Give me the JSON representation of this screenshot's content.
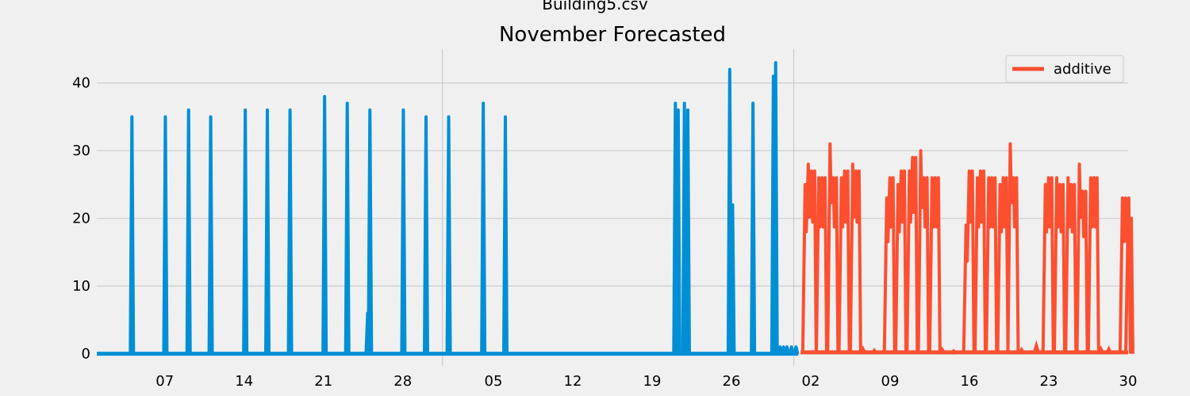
{
  "chart_data": {
    "type": "line",
    "suptitle": "Building5.csv",
    "title": "November Forecasted",
    "xlabel": "",
    "ylabel": "",
    "ylim": [
      -1.8,
      45
    ],
    "yticks": [
      0,
      10,
      20,
      30,
      40
    ],
    "x_tick_labels": [
      "07",
      "14",
      "21",
      "28",
      "05",
      "12",
      "19",
      "26",
      "02",
      "09",
      "16",
      "23",
      "30"
    ],
    "x_tick_days": [
      6,
      13,
      20,
      27,
      35,
      42,
      49,
      56,
      63,
      70,
      77,
      84,
      91
    ],
    "xlim_days": [
      0,
      91
    ],
    "grid": true,
    "legend": {
      "position": "top-right",
      "entries": [
        "additive"
      ]
    },
    "series": [
      {
        "color": "#008fd5",
        "baseline": 0,
        "x_range_days": [
          0,
          61.9
        ],
        "spikes": [
          {
            "day": 3.1,
            "peak": 35
          },
          {
            "day": 6.05,
            "peak": 35
          },
          {
            "day": 8.1,
            "peak": 36
          },
          {
            "day": 10.05,
            "peak": 35
          },
          {
            "day": 13.1,
            "peak": 36
          },
          {
            "day": 15.05,
            "peak": 36
          },
          {
            "day": 17.05,
            "peak": 36
          },
          {
            "day": 20.1,
            "peak": 38
          },
          {
            "day": 22.1,
            "peak": 37
          },
          {
            "day": 23.9,
            "peak": 6
          },
          {
            "day": 24.1,
            "peak": 36
          },
          {
            "day": 27.05,
            "peak": 36
          },
          {
            "day": 29.05,
            "peak": 35
          },
          {
            "day": 31.05,
            "peak": 35
          },
          {
            "day": 34.1,
            "peak": 37
          },
          {
            "day": 36.05,
            "peak": 35
          },
          {
            "day": 51.05,
            "peak": 37
          },
          {
            "day": 51.3,
            "peak": 36
          },
          {
            "day": 51.85,
            "peak": 37
          },
          {
            "day": 52.15,
            "peak": 36
          },
          {
            "day": 55.85,
            "peak": 42
          },
          {
            "day": 56.1,
            "peak": 22
          },
          {
            "day": 57.9,
            "peak": 37
          },
          {
            "day": 59.7,
            "peak": 41
          },
          {
            "day": 59.9,
            "peak": 43
          },
          {
            "day": 60.3,
            "peak": 1
          },
          {
            "day": 60.6,
            "peak": 1
          },
          {
            "day": 60.9,
            "peak": 1
          },
          {
            "day": 61.3,
            "peak": 1
          },
          {
            "day": 61.7,
            "peak": 1
          }
        ]
      },
      {
        "name": "additive",
        "color": "#fc4f30",
        "baseline": 0.2,
        "x_range_days": [
          62.1,
          91
        ],
        "bursts": [
          {
            "start": 62.5,
            "peaks": [
              25,
              28,
              27
            ]
          },
          {
            "start": 63.7,
            "peaks": [
              26,
              26
            ]
          },
          {
            "start": 64.7,
            "peaks": [
              31,
              26
            ]
          },
          {
            "start": 65.7,
            "peaks": [
              26,
              27
            ]
          },
          {
            "start": 66.7,
            "peaks": [
              28,
              27
            ]
          },
          {
            "start": 69.7,
            "peaks": [
              23,
              26
            ]
          },
          {
            "start": 70.7,
            "peaks": [
              25,
              27
            ]
          },
          {
            "start": 71.7,
            "peaks": [
              27,
              29
            ]
          },
          {
            "start": 72.7,
            "peaks": [
              30,
              26
            ]
          },
          {
            "start": 73.7,
            "peaks": [
              26,
              26
            ]
          },
          {
            "start": 76.7,
            "peaks": [
              19,
              27
            ]
          },
          {
            "start": 77.7,
            "peaks": [
              26,
              27
            ]
          },
          {
            "start": 78.7,
            "peaks": [
              26,
              26
            ]
          },
          {
            "start": 79.7,
            "peaks": [
              25,
              26
            ]
          },
          {
            "start": 80.6,
            "peaks": [
              31,
              26
            ]
          },
          {
            "start": 83.7,
            "peaks": [
              25,
              26
            ]
          },
          {
            "start": 84.7,
            "peaks": [
              26,
              25
            ]
          },
          {
            "start": 85.7,
            "peaks": [
              26,
              25
            ]
          },
          {
            "start": 86.7,
            "peaks": [
              28,
              24
            ]
          },
          {
            "start": 87.7,
            "peaks": [
              26,
              26
            ]
          },
          {
            "start": 90.5,
            "peaks": [
              23,
              23
            ]
          },
          {
            "start": 91.0,
            "peaks": [
              20
            ]
          }
        ],
        "small_bumps": [
          {
            "day": 67.6,
            "peak": 0.7
          },
          {
            "day": 68.6,
            "peak": 0.5
          },
          {
            "day": 74.6,
            "peak": 0.6
          },
          {
            "day": 75.6,
            "peak": 0.4
          },
          {
            "day": 81.6,
            "peak": 0.6
          },
          {
            "day": 82.9,
            "peak": 1.2
          },
          {
            "day": 88.6,
            "peak": 0.7
          },
          {
            "day": 89.3,
            "peak": 0.7
          }
        ]
      }
    ]
  }
}
